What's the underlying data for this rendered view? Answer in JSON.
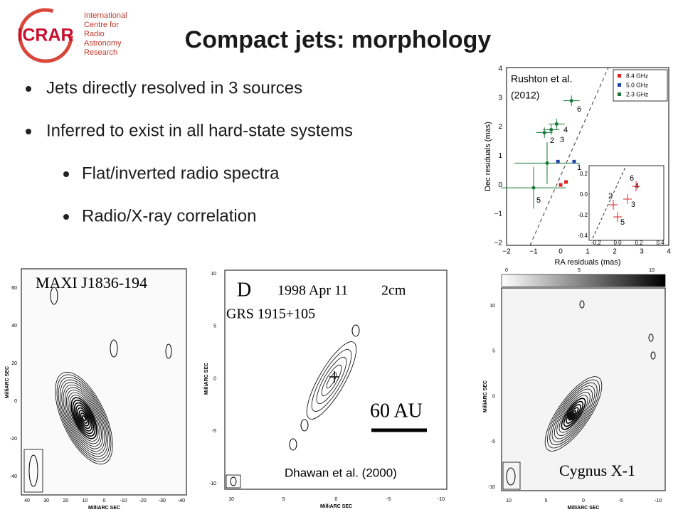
{
  "header": {
    "logo": "ICRAR",
    "logo_text": [
      "International",
      "Centre for",
      "Radio",
      "Astronomy",
      "Research"
    ],
    "title": "Compact jets: morphology"
  },
  "bullets": [
    "Jets directly resolved in 3 sources",
    "Inferred to exist in all hard-state systems"
  ],
  "sub_bullets": [
    "Flat/inverted radio spectra",
    "Radio/X-ray correlation"
  ],
  "rushton": {
    "citation": [
      "Rushton et al.",
      "(2012)"
    ],
    "legend": [
      "8.4 GHz",
      "5.0 GHz",
      "2.3 GHz"
    ],
    "x_label": "RA residuals (mas)",
    "y_label": "Dec residuals (mas)",
    "xticks": [
      "−2",
      "−1",
      "0",
      "1",
      "2",
      "3",
      "4"
    ],
    "yticks": [
      "4",
      "3",
      "2",
      "1",
      "0",
      "−1",
      "−2"
    ],
    "point_labels": [
      "1",
      "2",
      "3",
      "4",
      "5",
      "6"
    ],
    "inset_xticks": [
      "-0.2",
      "0.0",
      "0.2",
      "0.4"
    ],
    "inset_yticks": [
      "0.2",
      "0.0",
      "-0.2",
      "-0.4"
    ],
    "inset_labels": [
      "2",
      "5",
      "3",
      "6",
      "4"
    ]
  },
  "maxi": {
    "label": "MAXI J1836-194",
    "yticks": [
      "60",
      "40",
      "20",
      "0",
      "-20",
      "-40"
    ],
    "xticks": [
      "40",
      "30",
      "20",
      "10",
      "0",
      "-10",
      "-20",
      "-30",
      "-40"
    ],
    "x_label": "MilliARC SEC",
    "y_label": "MilliARC SEC"
  },
  "grs": {
    "panel": "D",
    "date": "1998 Apr 11",
    "band": "2cm",
    "label": "GRS 1915+105",
    "scale": "60 AU",
    "citation": "Dhawan et al. (2000)",
    "yticks": [
      "10",
      "5",
      "0",
      "-5",
      "-10"
    ],
    "xticks": [
      "10",
      "5",
      "0",
      "-5",
      "-10"
    ],
    "x_label": "MilliARC SEC",
    "y_label": "MilliARC SEC"
  },
  "cygnus": {
    "label": "Cygnus X-1",
    "colorbar_ticks": [
      "0",
      "5",
      "10"
    ],
    "yticks": [
      "10",
      "5",
      "0",
      "-5",
      "-10"
    ],
    "xticks": [
      "10",
      "5",
      "0",
      "-5",
      "-10"
    ],
    "x_label": "MilliARC SEC",
    "y_label": "MilliARC SEC"
  }
}
